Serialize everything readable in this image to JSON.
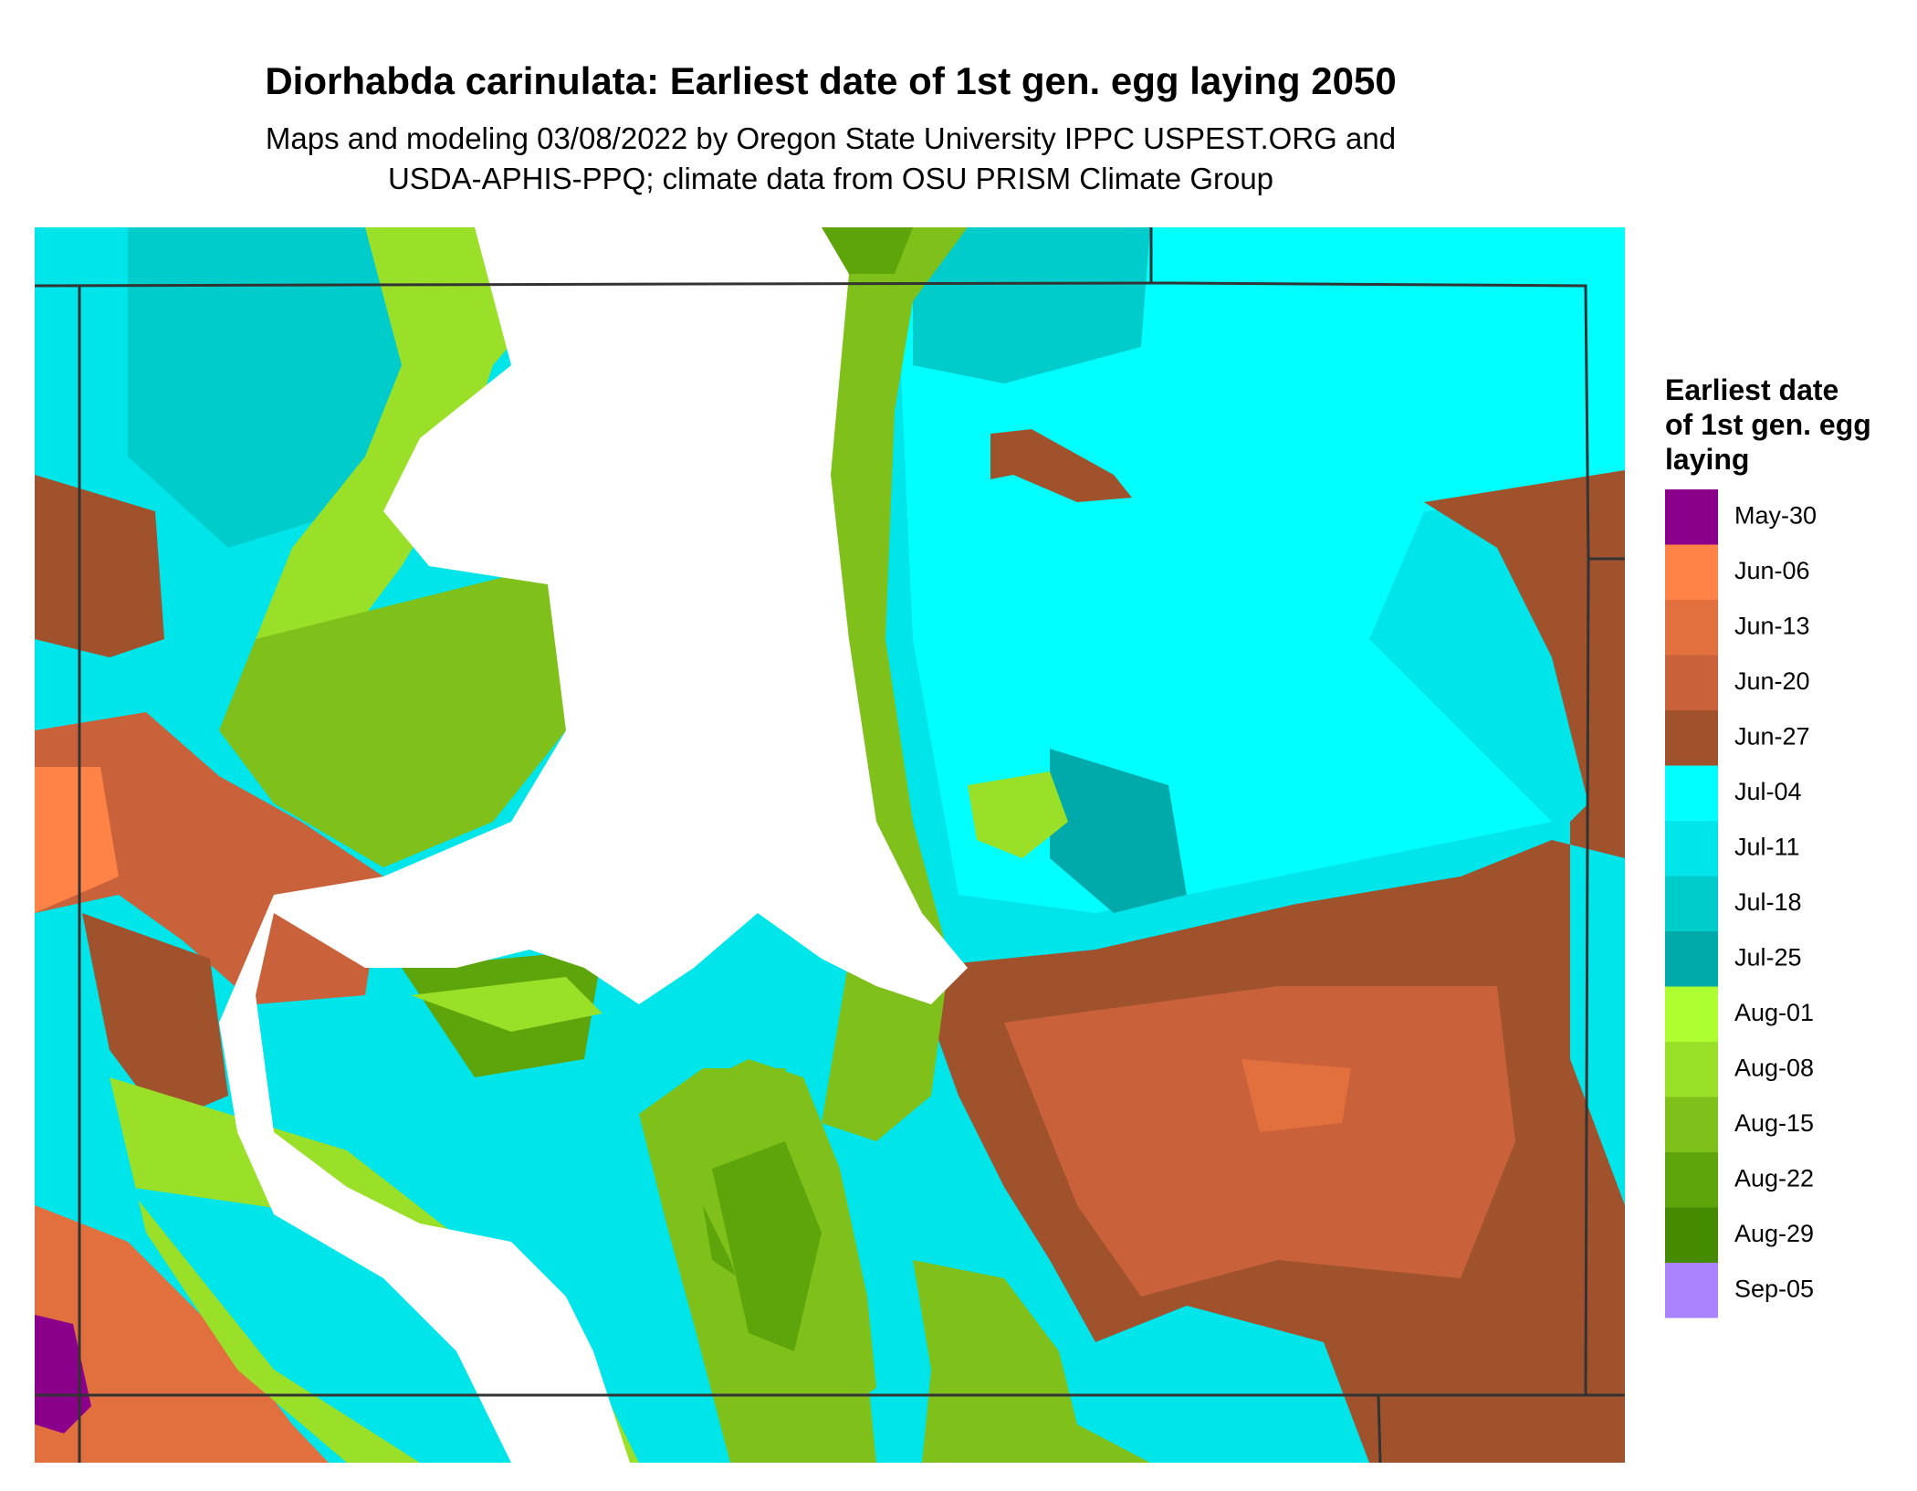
{
  "title": "Diorhabda carinulata: Earliest date of 1st gen. egg laying 2050",
  "subtitle": [
    "Maps and modeling 03/08/2022 by Oregon State University IPPC USPEST.ORG and",
    "USDA-APHIS-PPQ; climate data from OSU PRISM Climate Group"
  ],
  "legend": {
    "title": [
      "Earliest date",
      "of 1st gen. egg",
      "laying"
    ],
    "items": [
      {
        "label": "May-30",
        "color": "#8b008b"
      },
      {
        "label": "Jun-06",
        "color": "#ff8247"
      },
      {
        "label": "Jun-13",
        "color": "#e2703f"
      },
      {
        "label": "Jun-20",
        "color": "#c9623a"
      },
      {
        "label": "Jun-27",
        "color": "#a0522d"
      },
      {
        "label": "Jul-04",
        "color": "#00ffff"
      },
      {
        "label": "Jul-11",
        "color": "#00e5ea"
      },
      {
        "label": "Jul-18",
        "color": "#00cccc"
      },
      {
        "label": "Jul-25",
        "color": "#00aaaa"
      },
      {
        "label": "Aug-01",
        "color": "#adff2f"
      },
      {
        "label": "Aug-08",
        "color": "#9be028"
      },
      {
        "label": "Aug-15",
        "color": "#7fc01a"
      },
      {
        "label": "Aug-22",
        "color": "#5ea50c"
      },
      {
        "label": "Aug-29",
        "color": "#458b00"
      },
      {
        "label": "Sep-05",
        "color": "#ab82ff"
      }
    ]
  }
}
